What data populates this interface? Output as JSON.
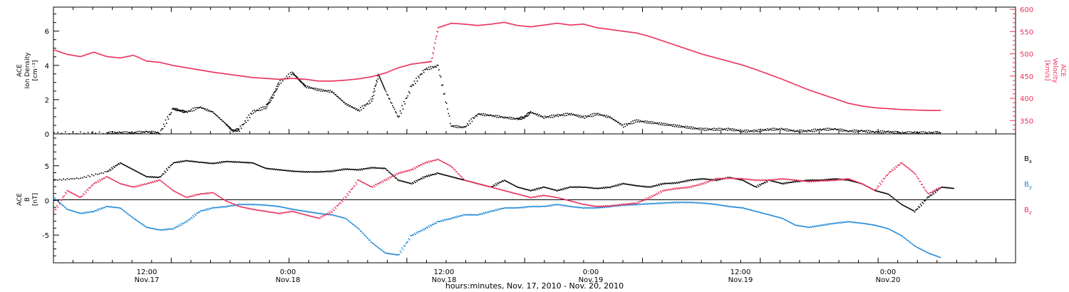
{
  "chart_data": [
    {
      "type": "scatter",
      "panel": "top",
      "ylabel_left": [
        "ACE",
        "Ion Density",
        "[cm⁻³]"
      ],
      "ylabel_right": [
        "ACE",
        "Velocity",
        "[km/s]"
      ],
      "x_range_hours": [
        0,
        98
      ],
      "ylim_left": [
        0,
        7.4
      ],
      "yticks_left": [
        0,
        2,
        4,
        6
      ],
      "ylim_right": [
        320,
        605
      ],
      "yticks_right": [
        350,
        400,
        450,
        500,
        550,
        600
      ],
      "colors": {
        "density": "#000000",
        "velocity": "#e8305c"
      },
      "series": [
        {
          "name": "Ion Density",
          "x": [
            0,
            8,
            10,
            12,
            14,
            16,
            18,
            19,
            20,
            22,
            24,
            26,
            27,
            28,
            30,
            32,
            33,
            34,
            36,
            37,
            38,
            40,
            42,
            44,
            46,
            48,
            49,
            50,
            52,
            54,
            56,
            58,
            60,
            62,
            64,
            66,
            68,
            70,
            71,
            72,
            74,
            76,
            78,
            80,
            82,
            84,
            86,
            88,
            90,
            92,
            94,
            96,
            98,
            100,
            102,
            104,
            106,
            108,
            110,
            112,
            114,
            116,
            118,
            120,
            122,
            124,
            126,
            128,
            130,
            132,
            134
          ],
          "y": [
            0.1,
            0.1,
            0.1,
            0.1,
            0.15,
            0.1,
            1.5,
            1.4,
            1.3,
            1.6,
            1.3,
            0.6,
            0.2,
            0.3,
            1.3,
            1.6,
            2.2,
            3.0,
            3.6,
            3.2,
            2.8,
            2.6,
            2.5,
            1.8,
            1.4,
            2.0,
            3.5,
            2.6,
            1.0,
            2.8,
            3.8,
            4.0,
            0.5,
            0.4,
            1.2,
            1.1,
            1.0,
            0.9,
            1.0,
            1.3,
            1.0,
            1.1,
            1.2,
            1.0,
            1.2,
            1.0,
            0.5,
            0.8,
            0.7,
            0.6,
            0.5,
            0.4,
            0.3,
            0.3,
            0.3,
            0.2,
            0.2,
            0.3,
            0.3,
            0.2,
            0.2,
            0.3,
            0.3,
            0.2,
            0.2,
            0.15,
            0.15,
            0.1,
            0.1,
            0.1,
            0.1
          ]
        },
        {
          "name": "Velocity",
          "x": [
            0,
            2,
            4,
            6,
            8,
            10,
            12,
            14,
            16,
            18,
            20,
            22,
            24,
            26,
            28,
            30,
            32,
            34,
            36,
            38,
            40,
            42,
            44,
            46,
            48,
            50,
            52,
            54,
            56,
            57,
            58,
            60,
            62,
            64,
            66,
            68,
            70,
            72,
            74,
            76,
            78,
            80,
            82,
            84,
            86,
            88,
            90,
            92,
            94,
            96,
            98,
            100,
            102,
            104,
            106,
            108,
            110,
            112,
            114,
            116,
            118,
            120,
            122,
            124,
            126,
            128,
            130,
            132,
            134
          ],
          "y": [
            510,
            500,
            495,
            505,
            495,
            492,
            498,
            485,
            482,
            475,
            470,
            465,
            460,
            456,
            452,
            448,
            446,
            444,
            446,
            444,
            440,
            440,
            442,
            445,
            450,
            458,
            470,
            478,
            482,
            484,
            560,
            570,
            568,
            565,
            568,
            572,
            565,
            562,
            566,
            570,
            566,
            568,
            560,
            556,
            552,
            548,
            540,
            530,
            520,
            510,
            500,
            492,
            484,
            476,
            466,
            455,
            444,
            432,
            420,
            410,
            400,
            390,
            384,
            380,
            378,
            376,
            375,
            374,
            374
          ]
        }
      ]
    },
    {
      "type": "scatter",
      "panel": "bottom",
      "ylabel_left": [
        "ACE",
        "B",
        "[nT]"
      ],
      "x_range_hours": [
        0,
        98
      ],
      "ylim": [
        -9,
        9.6
      ],
      "yticks": [
        -5,
        0,
        5
      ],
      "x_ticks": [
        {
          "time": "12:00",
          "date": "Nov.17"
        },
        {
          "time": "0:00",
          "date": "Nov.18"
        },
        {
          "time": "12:00",
          "date": "Nov.18"
        },
        {
          "time": "0:00",
          "date": "Nov.19"
        },
        {
          "time": "12:00",
          "date": "Nov.19"
        },
        {
          "time": "0:00",
          "date": "Nov.20"
        }
      ],
      "xlabel": "hours:minutes, Nov. 17, 2010 - Nov. 20, 2010",
      "series": [
        {
          "name": "Bx",
          "color": "#000000",
          "x": [
            0,
            4,
            8,
            10,
            12,
            14,
            16,
            18,
            20,
            22,
            24,
            26,
            28,
            30,
            32,
            34,
            36,
            38,
            40,
            42,
            44,
            46,
            48,
            50,
            52,
            54,
            56,
            58,
            60,
            62,
            64,
            66,
            68,
            70,
            72,
            74,
            76,
            78,
            80,
            82,
            84,
            86,
            88,
            90,
            92,
            94,
            96,
            98,
            100,
            102,
            104,
            106,
            108,
            110,
            112,
            114,
            116,
            118,
            120,
            122,
            124,
            126,
            128,
            130,
            132,
            134,
            136
          ],
          "y": [
            3,
            3.3,
            4.2,
            5.5,
            4.5,
            3.5,
            3.4,
            5.5,
            5.8,
            5.6,
            5.4,
            5.7,
            5.6,
            5.5,
            4.7,
            4.5,
            4.3,
            4.2,
            4.2,
            4.3,
            4.6,
            4.5,
            4.8,
            4.7,
            3.0,
            2.5,
            3.5,
            4.0,
            3.5,
            3.0,
            2.5,
            2.0,
            3.0,
            2.0,
            1.5,
            2.0,
            1.5,
            2.0,
            2.0,
            1.8,
            2.0,
            2.5,
            2.2,
            2.0,
            2.5,
            2.6,
            3.0,
            3.2,
            3.0,
            3.4,
            3.0,
            2.0,
            3.0,
            2.5,
            2.8,
            3.0,
            3.0,
            3.2,
            3.0,
            2.5,
            1.5,
            1.0,
            -0.5,
            -1.5,
            0.5,
            2.0,
            1.8
          ]
        },
        {
          "name": "By",
          "color": "#1e88d8",
          "x": [
            0,
            2,
            4,
            6,
            8,
            10,
            12,
            14,
            16,
            18,
            20,
            22,
            24,
            26,
            28,
            30,
            32,
            34,
            36,
            38,
            40,
            42,
            44,
            46,
            48,
            50,
            52,
            54,
            56,
            58,
            60,
            62,
            64,
            66,
            68,
            70,
            72,
            74,
            76,
            78,
            80,
            82,
            84,
            86,
            88,
            90,
            92,
            94,
            96,
            98,
            100,
            102,
            104,
            106,
            108,
            110,
            112,
            114,
            116,
            118,
            120,
            122,
            124,
            126,
            128,
            130,
            132,
            134
          ],
          "y": [
            0.5,
            -1.2,
            -1.8,
            -1.5,
            -0.8,
            -1.0,
            -2.5,
            -3.8,
            -4.2,
            -4.0,
            -3.0,
            -1.5,
            -1.0,
            -0.8,
            -0.5,
            -0.5,
            -0.6,
            -0.8,
            -1.2,
            -1.5,
            -1.8,
            -2.0,
            -2.5,
            -4.0,
            -6.0,
            -7.5,
            -7.8,
            -5.0,
            -4.0,
            -3.0,
            -2.5,
            -2.0,
            -2.0,
            -1.5,
            -1.0,
            -1.0,
            -0.8,
            -0.8,
            -0.5,
            -0.8,
            -1.0,
            -1.0,
            -0.8,
            -0.6,
            -0.5,
            -0.4,
            -0.3,
            -0.2,
            -0.2,
            -0.3,
            -0.5,
            -0.8,
            -1.0,
            -1.5,
            -2.0,
            -2.5,
            -3.5,
            -3.8,
            -3.5,
            -3.2,
            -3.0,
            -3.2,
            -3.5,
            -4.0,
            -5.0,
            -6.5,
            -7.5,
            -8.2
          ]
        },
        {
          "name": "Bz",
          "color": "#e8305c",
          "x": [
            0,
            2,
            4,
            6,
            8,
            10,
            12,
            14,
            16,
            18,
            20,
            22,
            24,
            26,
            28,
            30,
            32,
            34,
            36,
            38,
            40,
            42,
            44,
            46,
            48,
            50,
            52,
            54,
            56,
            58,
            60,
            62,
            64,
            66,
            68,
            70,
            72,
            74,
            76,
            78,
            80,
            82,
            84,
            86,
            88,
            90,
            92,
            94,
            96,
            98,
            100,
            102,
            104,
            106,
            108,
            110,
            112,
            114,
            116,
            118,
            120,
            122,
            124,
            126,
            128,
            130,
            132,
            134
          ],
          "y": [
            -1.5,
            1.5,
            0.5,
            2.5,
            3.5,
            2.5,
            2.0,
            2.5,
            3.0,
            1.5,
            0.5,
            1.0,
            1.2,
            0.0,
            -0.8,
            -1.2,
            -1.5,
            -1.8,
            -1.5,
            -2.0,
            -2.5,
            -1.5,
            0.5,
            3.0,
            2.0,
            3.0,
            4.0,
            4.5,
            5.5,
            6.0,
            5.0,
            3.0,
            2.5,
            2.0,
            1.5,
            1.0,
            0.5,
            0.8,
            0.5,
            0.0,
            -0.5,
            -0.8,
            -0.7,
            -0.5,
            -0.3,
            0.5,
            1.5,
            1.8,
            2.0,
            2.5,
            3.2,
            3.3,
            3.2,
            3.0,
            3.0,
            3.2,
            3.0,
            2.8,
            2.9,
            3.0,
            3.2,
            2.5,
            1.5,
            4.0,
            5.5,
            4.0,
            1.0,
            2.0
          ]
        }
      ],
      "legend": [
        "Bx",
        "By",
        "Bz"
      ]
    }
  ]
}
